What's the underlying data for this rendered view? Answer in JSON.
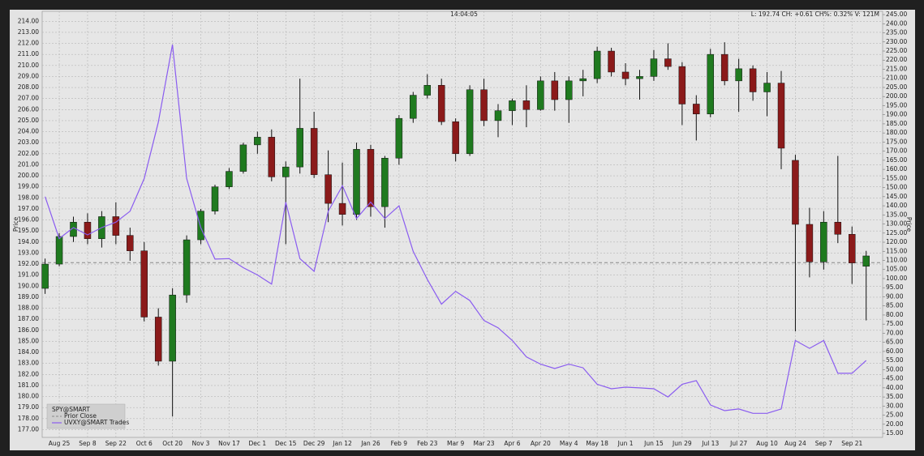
{
  "chart_data": {
    "type": "candlestick",
    "time": "14:04:05",
    "status": "L: 192.74 CH: +0.61 CH%: 0.32% V: 121M",
    "ylabel": "Price",
    "y2label": "Price",
    "grid": true,
    "categories": [
      null,
      "Aug 25",
      null,
      "Sep 8",
      null,
      "Sep 22",
      null,
      "Oct 6",
      null,
      "Oct 20",
      null,
      "Nov 3",
      null,
      "Nov 17",
      null,
      "Dec 1",
      null,
      "Dec 15",
      null,
      "Dec 29",
      null,
      "Jan 12",
      null,
      "Jan 26",
      null,
      "Feb 9",
      null,
      "Feb 23",
      null,
      "Mar 9",
      null,
      "Mar 23",
      null,
      "Apr 6",
      null,
      "Apr 20",
      null,
      "May 4",
      null,
      "May 18",
      null,
      "Jun 1",
      null,
      "Jun 15",
      null,
      "Jun 29",
      null,
      "Jul 13",
      null,
      "Jul 27",
      null,
      "Aug 10",
      null,
      "Aug 24",
      null,
      "Sep 7",
      null,
      "Sep 21",
      null
    ],
    "ylim": [
      176.3,
      214.9
    ],
    "yticks": [
      {
        "value": 177,
        "label": "177.00"
      },
      {
        "value": 178,
        "label": "178.00"
      },
      {
        "value": 179,
        "label": "179.00"
      },
      {
        "value": 180,
        "label": "180.00"
      },
      {
        "value": 181,
        "label": "181.00"
      },
      {
        "value": 182,
        "label": "182.00"
      },
      {
        "value": 183,
        "label": "183.00"
      },
      {
        "value": 184,
        "label": "184.00"
      },
      {
        "value": 185,
        "label": "185.00"
      },
      {
        "value": 186,
        "label": "186.00"
      },
      {
        "value": 187,
        "label": "187.00"
      },
      {
        "value": 188,
        "label": "188.00"
      },
      {
        "value": 189,
        "label": "189.00"
      },
      {
        "value": 190,
        "label": "190.00"
      },
      {
        "value": 191,
        "label": "191.00"
      },
      {
        "value": 192,
        "label": "192.00"
      },
      {
        "value": 193,
        "label": "193.00"
      },
      {
        "value": 194,
        "label": "194.00"
      },
      {
        "value": 195,
        "label": "195.00"
      },
      {
        "value": 196,
        "label": "196.00"
      },
      {
        "value": 197,
        "label": "197.00"
      },
      {
        "value": 198,
        "label": "198.00"
      },
      {
        "value": 199,
        "label": "199.00"
      },
      {
        "value": 200,
        "label": "200.00"
      },
      {
        "value": 201,
        "label": "201.00"
      },
      {
        "value": 202,
        "label": "202.00"
      },
      {
        "value": 203,
        "label": "203.00"
      },
      {
        "value": 204,
        "label": "204.00"
      },
      {
        "value": 205,
        "label": "205.00"
      },
      {
        "value": 206,
        "label": "206.00"
      },
      {
        "value": 207,
        "label": "207.00"
      },
      {
        "value": 208,
        "label": "208.00"
      },
      {
        "value": 209,
        "label": "209.00"
      },
      {
        "value": 210,
        "label": "210.00"
      },
      {
        "value": 211,
        "label": "211.00"
      },
      {
        "value": 212,
        "label": "212.00"
      },
      {
        "value": 213,
        "label": "213.00"
      },
      {
        "value": 214,
        "label": "214.00"
      }
    ],
    "y2lim": [
      12.8,
      246.8
    ],
    "y2ticks": [
      {
        "value": 15,
        "label": "15.00"
      },
      {
        "value": 20,
        "label": "20.00"
      },
      {
        "value": 25,
        "label": "25.00"
      },
      {
        "value": 30,
        "label": "30.00"
      },
      {
        "value": 35,
        "label": "35.00"
      },
      {
        "value": 40,
        "label": "40.00"
      },
      {
        "value": 45,
        "label": "45.00"
      },
      {
        "value": 50,
        "label": "50.00"
      },
      {
        "value": 55,
        "label": "55.00"
      },
      {
        "value": 60,
        "label": "60.00"
      },
      {
        "value": 65,
        "label": "65.00"
      },
      {
        "value": 70,
        "label": "70.00"
      },
      {
        "value": 75,
        "label": "75.00"
      },
      {
        "value": 80,
        "label": "80.00"
      },
      {
        "value": 85,
        "label": "85.00"
      },
      {
        "value": 90,
        "label": "90.00"
      },
      {
        "value": 95,
        "label": "95.00"
      },
      {
        "value": 100,
        "label": "100.00"
      },
      {
        "value": 105,
        "label": "105.00"
      },
      {
        "value": 110,
        "label": "110.00"
      },
      {
        "value": 115,
        "label": "115.00"
      },
      {
        "value": 120,
        "label": "120.00"
      },
      {
        "value": 125,
        "label": "125.00"
      },
      {
        "value": 130,
        "label": "130.00"
      },
      {
        "value": 135,
        "label": "135.00"
      },
      {
        "value": 140,
        "label": "140.00"
      },
      {
        "value": 145,
        "label": "145.00"
      },
      {
        "value": 150,
        "label": "150.00"
      },
      {
        "value": 155,
        "label": "155.00"
      },
      {
        "value": 160,
        "label": "160.00"
      },
      {
        "value": 165,
        "label": "165.00"
      },
      {
        "value": 170,
        "label": "170.00"
      },
      {
        "value": 175,
        "label": "175.00"
      },
      {
        "value": 180,
        "label": "180.00"
      },
      {
        "value": 185,
        "label": "185.00"
      },
      {
        "value": 190,
        "label": "190.00"
      },
      {
        "value": 195,
        "label": "195.00"
      },
      {
        "value": 200,
        "label": "200.00"
      },
      {
        "value": 205,
        "label": "205.00"
      },
      {
        "value": 210,
        "label": "210.00"
      },
      {
        "value": 215,
        "label": "215.00"
      },
      {
        "value": 220,
        "label": "220.00"
      },
      {
        "value": 225,
        "label": "225.00"
      },
      {
        "value": 230,
        "label": "230.00"
      },
      {
        "value": 235,
        "label": "235.00"
      },
      {
        "value": 240,
        "label": "240.00"
      },
      {
        "value": 245,
        "label": "245.00"
      }
    ],
    "candles": {
      "name": "SPY@SMART",
      "up_color": "#1f7a1f",
      "down_color": "#8b1a1a",
      "open": [
        189.8,
        192.0,
        194.5,
        195.8,
        194.3,
        196.3,
        194.6,
        193.2,
        187.2,
        183.2,
        189.2,
        194.2,
        196.8,
        199.0,
        200.4,
        202.8,
        203.5,
        199.9,
        200.8,
        204.3,
        200.1,
        197.5,
        196.5,
        202.4,
        197.2,
        201.6,
        205.2,
        207.3,
        208.2,
        204.9,
        202.0,
        207.8,
        205.0,
        205.9,
        206.8,
        206.0,
        208.6,
        206.9,
        208.6,
        208.8,
        211.3,
        209.4,
        208.8,
        209.0,
        210.6,
        209.9,
        206.5,
        205.6,
        211.0,
        208.6,
        209.7,
        207.6,
        208.4,
        201.4,
        195.6,
        192.2,
        195.8,
        194.7,
        191.8
      ],
      "high": [
        192.5,
        194.8,
        196.3,
        196.6,
        196.8,
        197.6,
        195.3,
        194.0,
        188.0,
        189.8,
        194.6,
        197.0,
        199.2,
        200.7,
        203.0,
        204.0,
        204.2,
        201.3,
        208.8,
        205.8,
        202.3,
        201.2,
        203.0,
        202.8,
        201.8,
        205.5,
        207.6,
        209.2,
        208.8,
        205.2,
        208.2,
        208.8,
        206.5,
        207.0,
        208.2,
        209.0,
        209.4,
        209.0,
        209.6,
        211.7,
        211.6,
        210.2,
        209.6,
        211.4,
        212.0,
        210.3,
        207.3,
        211.5,
        212.1,
        210.6,
        210.0,
        209.4,
        209.5,
        201.9,
        197.1,
        196.8,
        201.8,
        195.4,
        193.2
      ],
      "low": [
        189.3,
        191.8,
        194.0,
        193.8,
        193.5,
        193.8,
        192.3,
        186.8,
        182.8,
        178.2,
        188.5,
        193.8,
        196.5,
        198.8,
        200.2,
        202.0,
        199.5,
        193.8,
        200.2,
        199.8,
        195.8,
        195.5,
        196.0,
        196.3,
        195.3,
        201.0,
        204.8,
        207.0,
        204.6,
        201.3,
        201.8,
        204.5,
        203.5,
        204.6,
        204.4,
        205.9,
        205.9,
        204.8,
        207.2,
        208.4,
        209.0,
        208.2,
        206.9,
        208.6,
        209.6,
        204.6,
        203.2,
        205.3,
        208.2,
        205.8,
        206.8,
        205.4,
        200.6,
        185.9,
        190.8,
        191.5,
        193.9,
        190.2,
        186.9
      ],
      "close": [
        192.0,
        194.5,
        195.8,
        194.3,
        196.3,
        194.6,
        193.2,
        187.2,
        183.2,
        189.2,
        194.2,
        196.8,
        199.0,
        200.4,
        202.8,
        203.5,
        199.9,
        200.8,
        204.3,
        200.1,
        197.5,
        196.5,
        202.4,
        197.2,
        201.6,
        205.2,
        207.3,
        208.2,
        204.9,
        202.0,
        207.8,
        205.0,
        205.9,
        206.8,
        206.0,
        208.6,
        206.9,
        208.6,
        208.8,
        211.3,
        209.4,
        208.8,
        209.0,
        210.6,
        209.9,
        206.5,
        205.6,
        211.0,
        208.6,
        209.7,
        207.6,
        208.4,
        202.5,
        195.6,
        192.2,
        195.8,
        194.7,
        192.1,
        192.74
      ]
    },
    "prior_close": {
      "name": "Prior Close",
      "value": 192.13,
      "color": "#888888"
    },
    "series": [
      {
        "name": "UVXY@SMART Trades",
        "color": "#8a5cf0",
        "axis": "y2",
        "values": [
          145,
          122,
          128,
          124,
          128,
          131,
          137,
          155,
          186,
          228.5,
          155,
          128,
          110.7,
          111,
          106,
          102,
          97,
          142,
          111,
          104,
          137,
          151,
          133,
          142,
          133,
          140,
          115,
          99.5,
          86,
          93,
          88,
          77,
          73,
          66,
          57,
          53,
          50.6,
          53,
          51,
          42,
          39.5,
          40.4,
          40,
          39.5,
          35,
          42,
          44,
          30.6,
          27.5,
          28.4,
          26,
          26,
          28.4,
          66,
          61.7,
          66,
          48,
          48,
          55
        ]
      }
    ]
  }
}
